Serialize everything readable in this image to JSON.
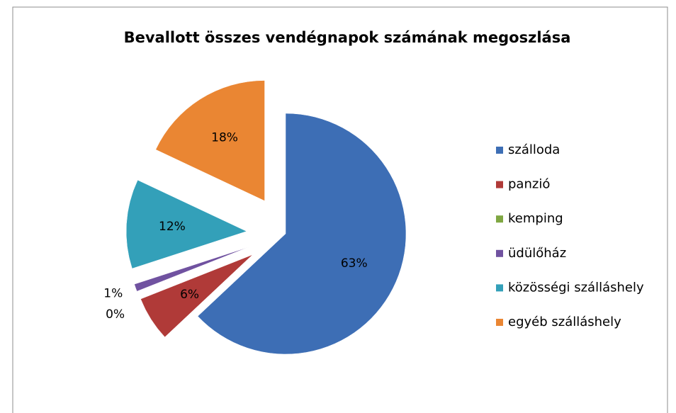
{
  "chart_data": {
    "type": "pie",
    "title": "Bevallott összes vendégnapok számának megoszlása",
    "categories": [
      "szálloda",
      "panzió",
      "kemping",
      "üdülőház",
      "közösségi szálláshely",
      "egyéb szálláshely"
    ],
    "values": [
      63,
      6,
      0,
      1,
      12,
      18
    ],
    "value_labels": [
      "63%",
      "6%",
      "0%",
      "1%",
      "12%",
      "18%"
    ],
    "colors": [
      "#3d6eb5",
      "#b03a38",
      "#7fa742",
      "#7052a0",
      "#33a0b9",
      "#ea8633"
    ],
    "legend": "right"
  }
}
